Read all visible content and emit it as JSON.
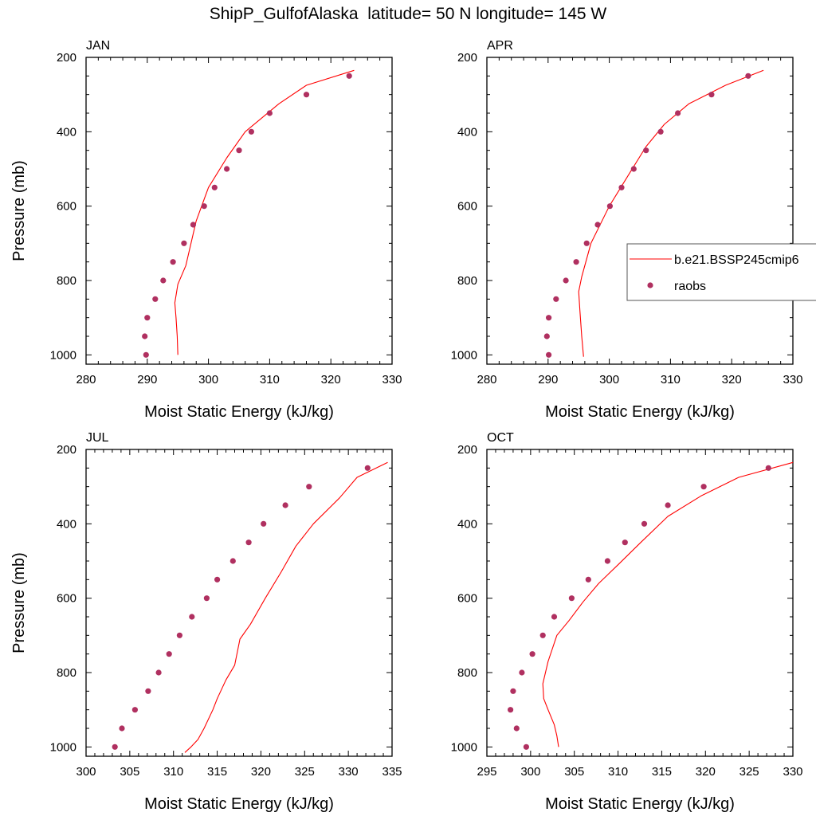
{
  "figure": {
    "title": "ShipP_GulfofAlaska  latitude= 50 N longitude= 145 W"
  },
  "legend": {
    "placement": "right-middle",
    "model_label": "b.e21.BSSP245cmip6",
    "obs_label": "raobs",
    "model_color": "#ff0000",
    "obs_color": "#b03060"
  },
  "chart_data": [
    {
      "type": "line",
      "title": "JAN",
      "xlabel": "Moist Static Energy (kJ/kg)",
      "ylabel": "Pressure (mb)",
      "xlim": [
        280,
        330
      ],
      "xticks": [
        280,
        290,
        300,
        310,
        320,
        330
      ],
      "ylim": [
        1025,
        200
      ],
      "yticks": [
        200,
        400,
        600,
        800,
        1000
      ],
      "y_reversed": true,
      "series": [
        {
          "name": "b.e21.BSSP245cmip6",
          "kind": "line",
          "x": [
            323.8,
            316,
            311.5,
            306,
            303,
            300,
            298,
            296.3,
            295,
            294.5,
            294.7,
            294.9,
            295
          ],
          "y": [
            235,
            275,
            325,
            400,
            470,
            550,
            640,
            760,
            810,
            860,
            900,
            950,
            1000
          ]
        },
        {
          "name": "raobs",
          "kind": "scatter",
          "x": [
            323,
            316,
            310,
            307,
            305,
            303,
            301,
            299.3,
            297.5,
            296,
            294.2,
            292.6,
            291.3,
            290,
            289.6,
            289.8
          ],
          "y": [
            250,
            300,
            350,
            400,
            450,
            500,
            550,
            600,
            650,
            700,
            750,
            800,
            850,
            900,
            950,
            1000
          ]
        }
      ]
    },
    {
      "type": "line",
      "title": "APR",
      "xlabel": "Moist Static Energy (kJ/kg)",
      "ylabel": "",
      "xlim": [
        280,
        330
      ],
      "xticks": [
        280,
        290,
        300,
        310,
        320,
        330
      ],
      "ylim": [
        1025,
        200
      ],
      "yticks": [
        200,
        400,
        600,
        800,
        1000
      ],
      "y_reversed": true,
      "series": [
        {
          "name": "b.e21.BSSP245cmip6",
          "kind": "line",
          "x": [
            325.2,
            319,
            313,
            309,
            306,
            303,
            300,
            297,
            295.5,
            295,
            295.2,
            295.5,
            295.8
          ],
          "y": [
            235,
            275,
            325,
            380,
            440,
            520,
            600,
            700,
            790,
            830,
            880,
            950,
            1005
          ]
        },
        {
          "name": "raobs",
          "kind": "scatter",
          "x": [
            322.7,
            316.7,
            311.2,
            308.4,
            306,
            304,
            302,
            300.1,
            298.1,
            296.3,
            294.6,
            292.9,
            291.3,
            290.1,
            289.8,
            290.1
          ],
          "y": [
            250,
            300,
            350,
            400,
            450,
            500,
            550,
            600,
            650,
            700,
            750,
            800,
            850,
            900,
            950,
            1000
          ]
        }
      ]
    },
    {
      "type": "line",
      "title": "JUL",
      "xlabel": "Moist Static Energy (kJ/kg)",
      "ylabel": "Pressure (mb)",
      "xlim": [
        300,
        335
      ],
      "xticks": [
        300,
        305,
        310,
        315,
        320,
        325,
        330,
        335
      ],
      "ylim": [
        1025,
        200
      ],
      "yticks": [
        200,
        400,
        600,
        800,
        1000
      ],
      "y_reversed": true,
      "series": [
        {
          "name": "b.e21.BSSP245cmip6",
          "kind": "line",
          "x": [
            334.5,
            331,
            329,
            326,
            324,
            322.3,
            320.5,
            318.8,
            317.6,
            317,
            316,
            315,
            314.5,
            313.5,
            312.8,
            312,
            311.3
          ],
          "y": [
            235,
            275,
            330,
            400,
            460,
            530,
            600,
            670,
            710,
            780,
            820,
            870,
            900,
            950,
            980,
            1000,
            1015
          ]
        },
        {
          "name": "raobs",
          "kind": "scatter",
          "x": [
            332.2,
            325.5,
            322.8,
            320.3,
            318.6,
            316.8,
            315,
            313.8,
            312.1,
            310.7,
            309.5,
            308.3,
            307.1,
            305.6,
            304.1,
            303.3
          ],
          "y": [
            250,
            300,
            350,
            400,
            450,
            500,
            550,
            600,
            650,
            700,
            750,
            800,
            850,
            900,
            950,
            1000
          ]
        }
      ]
    },
    {
      "type": "line",
      "title": "OCT",
      "xlabel": "Moist Static Energy (kJ/kg)",
      "ylabel": "",
      "xlim": [
        295,
        330
      ],
      "xticks": [
        295,
        300,
        305,
        310,
        315,
        320,
        325,
        330
      ],
      "ylim": [
        1025,
        200
      ],
      "yticks": [
        200,
        400,
        600,
        800,
        1000
      ],
      "y_reversed": true,
      "series": [
        {
          "name": "b.e21.BSSP245cmip6",
          "kind": "line",
          "x": [
            330,
            323.8,
            319.5,
            315.7,
            312.6,
            310,
            307.8,
            306,
            304.4,
            303,
            302,
            301.4,
            301.5,
            302,
            302.7,
            303,
            303.2
          ],
          "y": [
            235,
            275,
            325,
            380,
            450,
            510,
            560,
            610,
            660,
            700,
            770,
            830,
            870,
            900,
            940,
            970,
            1000
          ]
        },
        {
          "name": "raobs",
          "kind": "scatter",
          "x": [
            327.2,
            319.8,
            315.7,
            313,
            310.8,
            308.8,
            306.6,
            304.7,
            302.7,
            301.4,
            300.2,
            299,
            298,
            297.7,
            298.4,
            299.5
          ],
          "y": [
            250,
            300,
            350,
            400,
            450,
            500,
            550,
            600,
            650,
            700,
            750,
            800,
            850,
            900,
            950,
            1000
          ]
        }
      ]
    }
  ]
}
